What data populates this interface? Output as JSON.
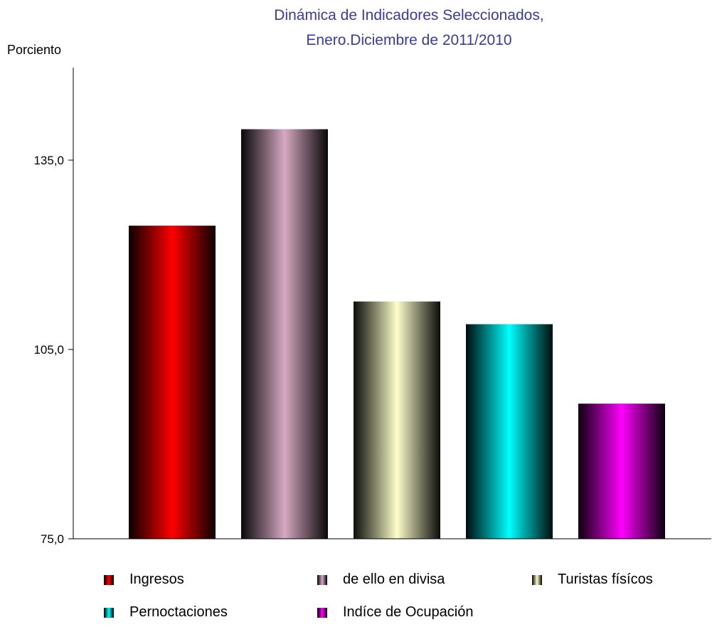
{
  "chart_data": {
    "type": "bar",
    "title": "Dinámica de Indicadores Seleccionados,",
    "subtitle": "Enero.Diciembre de 2011/2010",
    "ylabel": "Porciento",
    "xlabel": "",
    "ylim": [
      75.0,
      150.0
    ],
    "yticks": [
      "135,0",
      "105,0",
      "75,0"
    ],
    "ytick_values": [
      135.0,
      105.0,
      75.0
    ],
    "grid": false,
    "legend_position": "bottom",
    "categories": [
      "Ingresos",
      "de ello  en divisa",
      "Turistas físícos",
      "Pernoctaciones",
      "Indíce de Ocupación"
    ],
    "values": [
      124.6,
      139.9,
      112.6,
      109.0,
      96.4
    ],
    "colors": [
      "#ff0000",
      "#d7a9c3",
      "#ffffcc",
      "#00ffff",
      "#ff00ff"
    ]
  }
}
